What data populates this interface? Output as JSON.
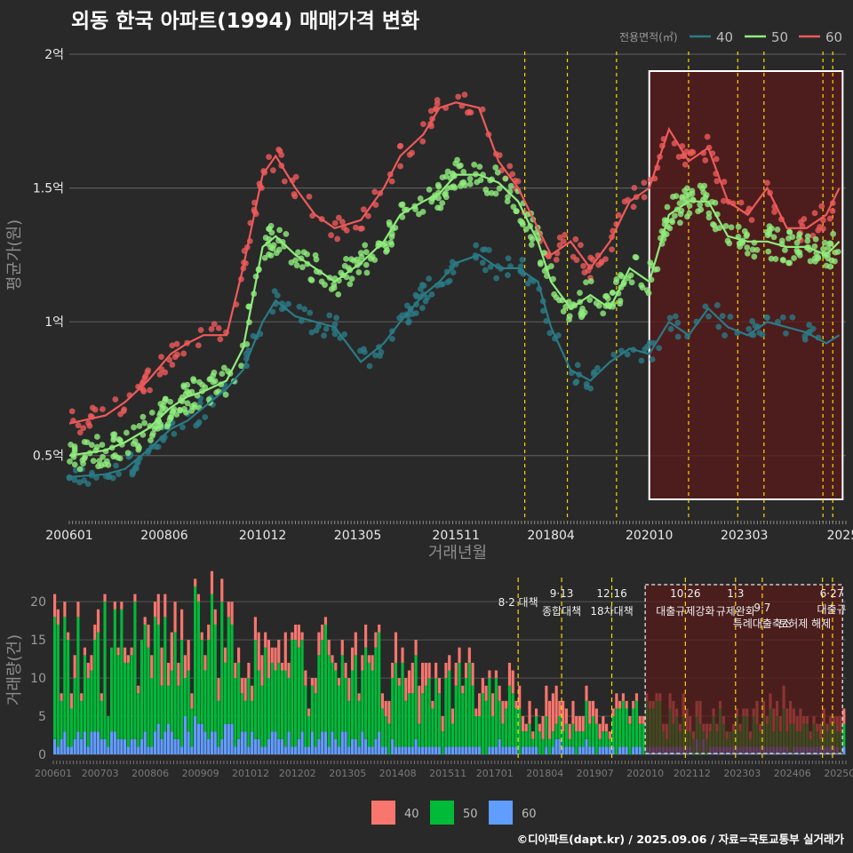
{
  "header": {
    "title": "외동 한국 아파트(1994) 매매가격 변화",
    "credit": "©디아파트(dapt.kr) / 2025.09.06 / 자료=국토교통부 실거래가"
  },
  "colors": {
    "background": "#292929",
    "price_40": "#2a7b86",
    "price_50": "#90ec7d",
    "price_60": "#ee5a5a",
    "vol_40": "#f8766d",
    "vol_50": "#00ba38",
    "vol_60": "#619cff",
    "policy_line": "#ffd700",
    "highlight_fill": "#5a1a1a",
    "highlight_border": "#ffffff"
  },
  "chart_data": [
    {
      "type": "line",
      "title": "외동 한국 아파트(1994) 매매가격 변화",
      "xlabel": "거래년월",
      "ylabel": "평균가(원)",
      "x_tick_labels": [
        "200601",
        "200806",
        "201012",
        "201305",
        "201511",
        "201804",
        "202010",
        "202303",
        "2025"
      ],
      "y_tick_labels": [
        "0.5억",
        "1억",
        "1.5억",
        "2억"
      ],
      "y_ticks": [
        0.5,
        1.0,
        1.5,
        2.0
      ],
      "y_unit": "억",
      "ylim": [
        0.25,
        2.05
      ],
      "xlim": [
        "2006-01",
        "2025-10"
      ],
      "grid": true,
      "legend_title": "전용면적(㎡)",
      "legend_position": "top-right",
      "series": [
        {
          "name": "40",
          "x": [
            "2006-01",
            "2006-12",
            "2007-06",
            "2008-01",
            "2008-08",
            "2009-01",
            "2009-06",
            "2010-01",
            "2010-06",
            "2010-12",
            "2011-04",
            "2011-10",
            "2012-04",
            "2012-10",
            "2013-06",
            "2014-01",
            "2014-06",
            "2015-01",
            "2015-06",
            "2015-11",
            "2016-06",
            "2016-12",
            "2017-06",
            "2017-12",
            "2018-04",
            "2018-10",
            "2019-04",
            "2019-10",
            "2020-04",
            "2020-10",
            "2021-04",
            "2021-10",
            "2022-04",
            "2022-10",
            "2023-04",
            "2023-10",
            "2024-04",
            "2024-10",
            "2025-04",
            "2025-08"
          ],
          "y": [
            0.42,
            0.43,
            0.45,
            0.52,
            0.6,
            0.63,
            0.68,
            0.75,
            0.82,
            1.0,
            1.08,
            1.02,
            1.0,
            0.98,
            0.85,
            0.92,
            1.0,
            1.1,
            1.15,
            1.22,
            1.25,
            1.2,
            1.2,
            1.15,
            0.98,
            0.82,
            0.78,
            0.85,
            0.9,
            0.88,
            1.0,
            0.95,
            1.05,
            0.98,
            0.95,
            1.0,
            0.98,
            0.96,
            0.92,
            0.95
          ]
        },
        {
          "name": "50",
          "x": [
            "2006-01",
            "2006-12",
            "2007-06",
            "2008-01",
            "2008-08",
            "2009-01",
            "2009-06",
            "2010-01",
            "2010-06",
            "2010-12",
            "2011-04",
            "2011-10",
            "2012-04",
            "2012-10",
            "2013-06",
            "2014-01",
            "2014-06",
            "2015-01",
            "2015-06",
            "2015-11",
            "2016-06",
            "2016-12",
            "2017-06",
            "2017-12",
            "2018-04",
            "2018-10",
            "2019-04",
            "2019-10",
            "2020-04",
            "2020-10",
            "2021-04",
            "2021-10",
            "2022-04",
            "2022-10",
            "2023-04",
            "2023-10",
            "2024-04",
            "2024-10",
            "2025-04",
            "2025-08"
          ],
          "y": [
            0.5,
            0.52,
            0.55,
            0.6,
            0.68,
            0.72,
            0.74,
            0.78,
            0.9,
            1.28,
            1.32,
            1.25,
            1.2,
            1.15,
            1.22,
            1.3,
            1.4,
            1.45,
            1.48,
            1.55,
            1.55,
            1.52,
            1.45,
            1.3,
            1.15,
            1.05,
            1.1,
            1.05,
            1.2,
            1.15,
            1.4,
            1.45,
            1.45,
            1.32,
            1.3,
            1.3,
            1.28,
            1.28,
            1.25,
            1.3
          ]
        },
        {
          "name": "60",
          "x": [
            "2006-01",
            "2006-12",
            "2007-06",
            "2008-01",
            "2008-08",
            "2009-01",
            "2009-06",
            "2010-01",
            "2010-06",
            "2010-12",
            "2011-04",
            "2011-10",
            "2012-04",
            "2012-10",
            "2013-06",
            "2014-01",
            "2014-06",
            "2015-01",
            "2015-06",
            "2015-11",
            "2016-06",
            "2016-12",
            "2017-06",
            "2017-12",
            "2018-04",
            "2018-10",
            "2019-04",
            "2019-10",
            "2020-04",
            "2020-10",
            "2021-04",
            "2021-10",
            "2022-04",
            "2022-10",
            "2023-04",
            "2023-10",
            "2024-04",
            "2024-10",
            "2025-04",
            "2025-08"
          ],
          "y": [
            0.62,
            0.65,
            0.7,
            0.78,
            0.88,
            0.92,
            0.95,
            0.95,
            1.2,
            1.55,
            1.62,
            1.5,
            1.4,
            1.35,
            1.38,
            1.5,
            1.62,
            1.7,
            1.8,
            1.82,
            1.8,
            1.6,
            1.5,
            1.35,
            1.25,
            1.3,
            1.2,
            1.3,
            1.45,
            1.5,
            1.72,
            1.6,
            1.65,
            1.45,
            1.4,
            1.5,
            1.35,
            1.35,
            1.4,
            1.5
          ]
        }
      ]
    },
    {
      "type": "bar",
      "ylabel": "거래량(건)",
      "stacked": true,
      "y_ticks": [
        0,
        5,
        10,
        15,
        20
      ],
      "ylim": [
        0,
        22
      ],
      "x_tick_labels": [
        "200601",
        "200703",
        "200806",
        "200909",
        "201012",
        "201202",
        "201305",
        "201408",
        "201511",
        "201701",
        "201804",
        "201907",
        "202010",
        "202112",
        "202303",
        "202406",
        "202509"
      ],
      "legend_position": "bottom",
      "series": [
        {
          "name": "40",
          "values": [
            2,
            1,
            3,
            2,
            3,
            2,
            2,
            3,
            2,
            2,
            3,
            2,
            1,
            2,
            1,
            2,
            1
          ]
        },
        {
          "name": "50",
          "values": [
            10,
            11,
            9,
            12,
            8,
            9,
            8,
            7,
            7,
            6,
            3,
            3,
            4,
            3,
            3,
            3,
            2
          ]
        },
        {
          "name": "60",
          "values": [
            2,
            2,
            3,
            3,
            2,
            2,
            2,
            1,
            1,
            1,
            1,
            1,
            1,
            1,
            1,
            1,
            1
          ]
        }
      ],
      "annotations": [
        {
          "date": "2017-08",
          "label": "8·2 대책"
        },
        {
          "date": "2018-09",
          "label": "9·13 종합대책"
        },
        {
          "date": "2019-12",
          "label": "12·16 18차대책"
        },
        {
          "date": "2021-10",
          "label": "10·26 대출규제강화"
        },
        {
          "date": "2023-01",
          "label": "1·3 규제완화"
        },
        {
          "date": "2023-09",
          "label": "9·7 특례대출축소"
        },
        {
          "date": "2025-03",
          "label": "토허제 해제"
        },
        {
          "date": "2025-06",
          "label": "6·27 대출규"
        }
      ],
      "highlight_range": [
        "2020-10",
        "2025-09"
      ]
    }
  ]
}
